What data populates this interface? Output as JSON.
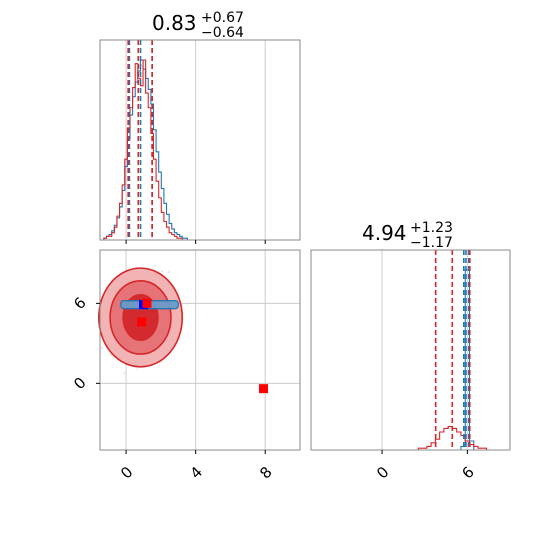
{
  "colors": {
    "samples_a": "#1f77b4",
    "samples_b": "#d62728",
    "truth_red": "#ff0000",
    "truth_blue": "#0000ff",
    "grid": "#cccccc",
    "frame": "#888888"
  },
  "chart_data": {
    "type": "corner",
    "grid": true,
    "panels": [
      {
        "panel": "param1-marginal",
        "type": "histogram",
        "title": {
          "value": "0.83",
          "upper": "+0.67",
          "lower": "−0.64"
        },
        "xlim": [
          -1.5,
          10
        ],
        "xticks": [
          "0",
          "4",
          "8"
        ],
        "bins": [
          -1.35,
          -1.2,
          -1.05,
          -0.9,
          -0.75,
          -0.6,
          -0.45,
          -0.3,
          -0.15,
          0.0,
          0.15,
          0.3,
          0.45,
          0.6,
          0.75,
          0.9,
          1.05,
          1.2,
          1.35,
          1.5,
          1.65,
          1.8,
          1.95,
          2.1,
          2.25,
          2.4,
          2.55,
          2.7,
          2.85,
          3.0,
          3.15,
          3.3,
          3.45,
          3.6,
          3.75,
          3.9
        ],
        "series": [
          {
            "color": "samples_a",
            "counts": [
              0,
              1,
              2,
              3,
              5,
              8,
              12,
              18,
              27,
              40,
              55,
              68,
              78,
              86,
              92,
              98,
              93,
              88,
              82,
              74,
              60,
              48,
              37,
              28,
              20,
              14,
              9,
              6,
              4,
              3,
              2,
              1,
              1,
              0,
              0,
              0
            ],
            "quantiles": [
              0.19,
              0.83,
              1.5
            ]
          },
          {
            "color": "samples_b",
            "counts": [
              0,
              1,
              2,
              2,
              4,
              7,
              13,
              20,
              30,
              44,
              61,
              72,
              83,
              96,
              88,
              84,
              98,
              80,
              72,
              58,
              44,
              32,
              23,
              15,
              10,
              7,
              4,
              3,
              2,
              1,
              1,
              0,
              0,
              0,
              0,
              0
            ],
            "quantiles": [
              0.12,
              0.7,
              1.5
            ]
          }
        ]
      },
      {
        "panel": "param2-marginal",
        "type": "histogram",
        "title": {
          "value": "4.94",
          "upper": "+1.23",
          "lower": "−1.17"
        },
        "xlim": [
          -5,
          9
        ],
        "xticks": [
          "0",
          "6"
        ],
        "bins": [
          -3.0,
          -2.7,
          -2.4,
          -2.1,
          -1.8,
          -1.5,
          -1.2,
          -0.9,
          -0.6,
          -0.3,
          0.0,
          0.3,
          0.6,
          0.9,
          1.2,
          1.5,
          1.8,
          2.1,
          2.4,
          2.7,
          3.0,
          3.3,
          3.6,
          3.9,
          4.2,
          4.5,
          4.8,
          5.1,
          5.4,
          5.7,
          6.0,
          6.3,
          6.6,
          6.9,
          7.2,
          7.5
        ],
        "series": [
          {
            "color": "samples_a",
            "counts": [
              0,
              0,
              0,
              0,
              0,
              0,
              0,
              0,
              0,
              0,
              0,
              0,
              0,
              0,
              0,
              0,
              0,
              0,
              0,
              0,
              0,
              0,
              0,
              0,
              0,
              0,
              0,
              0,
              0,
              2,
              100,
              5,
              0,
              0,
              0,
              0
            ],
            "quantiles": [
              5.75,
              5.9,
              6.1
            ]
          },
          {
            "color": "samples_b",
            "counts": [
              0,
              0,
              0,
              0,
              0,
              0,
              0,
              0,
              0,
              0,
              0,
              0,
              0,
              0,
              0,
              0,
              0,
              0,
              0,
              1,
              1,
              2,
              4,
              6,
              10,
              12,
              13,
              12,
              10,
              8,
              5,
              3,
              2,
              1,
              1,
              0
            ],
            "quantiles": [
              3.77,
              4.94,
              6.17
            ]
          }
        ]
      },
      {
        "panel": "param1-vs-param2",
        "type": "2d-density",
        "xlim": [
          -1.5,
          10
        ],
        "ylim": [
          -5,
          10
        ],
        "xticks": [
          "0",
          "4",
          "8"
        ],
        "yticks": [
          "0",
          "6"
        ],
        "contours_b": [
          {
            "cx": 0.83,
            "cy": 4.94,
            "rx": 2.4,
            "ry": 3.7
          },
          {
            "cx": 0.83,
            "cy": 4.94,
            "rx": 1.75,
            "ry": 2.75
          },
          {
            "cx": 0.83,
            "cy": 4.94,
            "rx": 1.0,
            "ry": 1.7
          }
        ],
        "band_a": {
          "x": [
            -0.3,
            3.0
          ],
          "y": [
            5.6,
            6.2
          ]
        },
        "truth_markers": [
          {
            "x": 1.0,
            "y": 5.9,
            "color": "truth_blue"
          },
          {
            "x": 1.2,
            "y": 6.0,
            "color": "truth_red"
          },
          {
            "x": 0.9,
            "y": 4.6,
            "color": "truth_red"
          },
          {
            "x": 7.9,
            "y": -0.4,
            "color": "truth_red"
          }
        ]
      }
    ]
  }
}
